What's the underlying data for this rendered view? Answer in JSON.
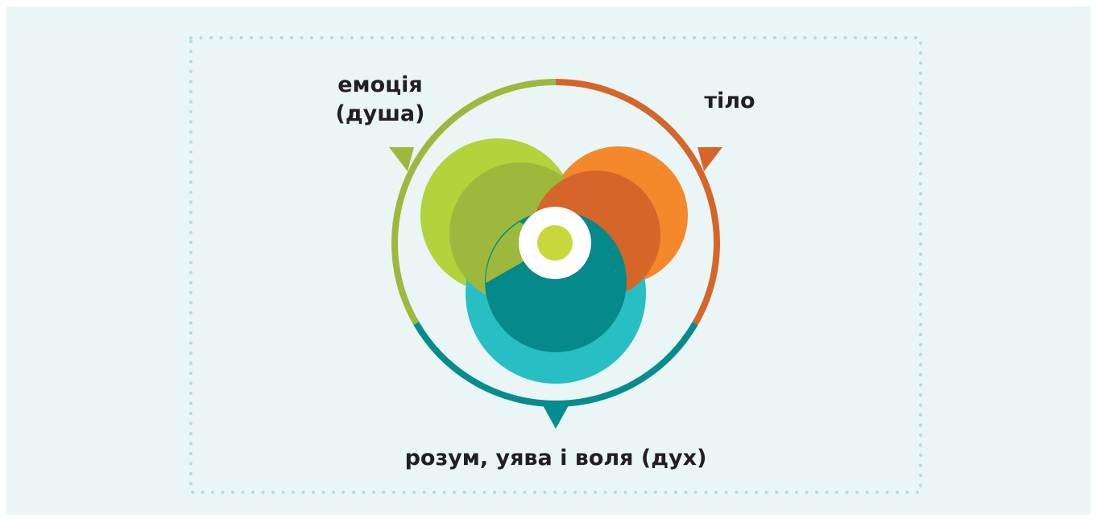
{
  "labels": {
    "emotion": [
      "емоція",
      "(душа)"
    ],
    "body": "тіло",
    "mind": "розум, уява і воля (дух)"
  }
}
